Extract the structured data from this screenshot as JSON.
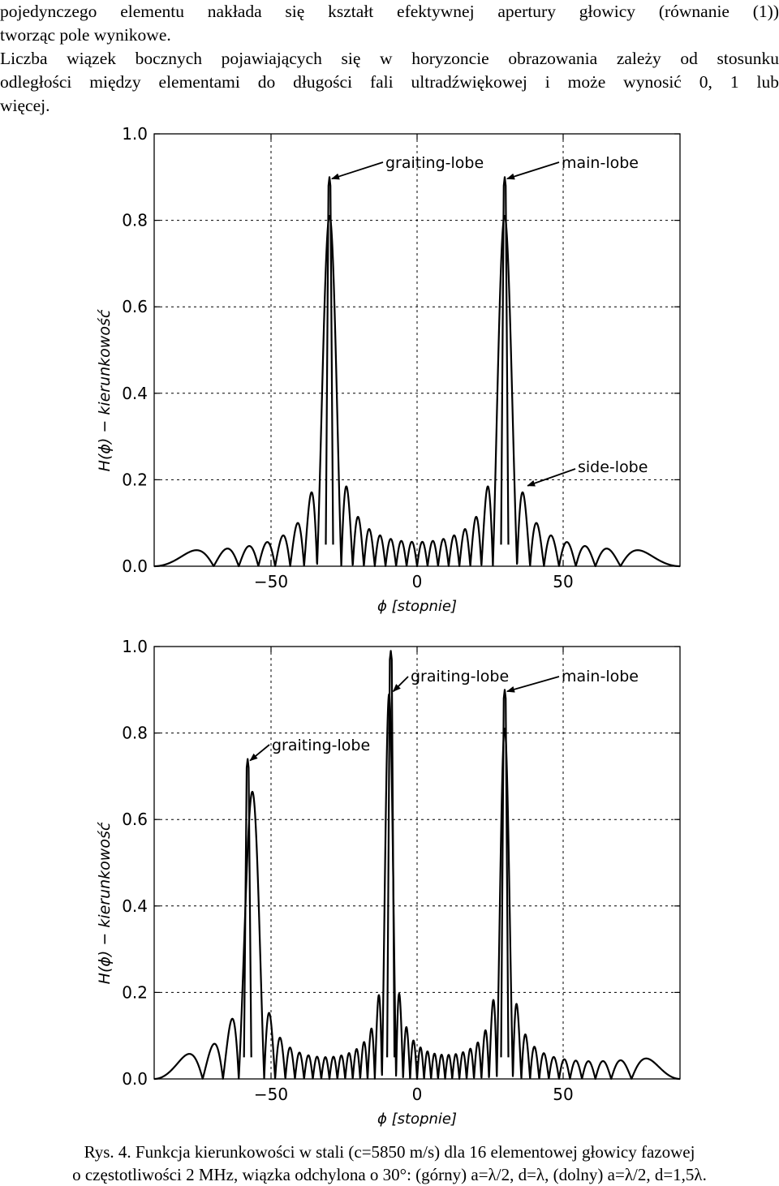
{
  "text": {
    "para1_line1": "pojedynczego elementu nakłada się kształt efektywnej apertury głowicy (równanie (1))",
    "para1_line2": "tworząc pole wynikowe.",
    "para2_line1": "Liczba wiązek bocznych pojawiających się w horyzoncie obrazowania zależy od stosunku",
    "para2_line2": "odległości między elementami do długości fali ultradźwiękowej i może wynosić 0, 1 lub",
    "para2_line3": "więcej."
  },
  "caption": {
    "line1": "Rys. 4. Funkcja kierunkowości w stali (c=5850 m/s) dla 16 elementowej głowicy fazowej",
    "line2": "o częstotliwości 2 MHz, wiązka odchylona o 30°: (górny) a=λ/2, d=λ, (dolny) a=λ/2, d=1,5λ."
  },
  "chart_data": [
    {
      "type": "line",
      "xlabel": "ϕ [stopnie]",
      "ylabel": "H(ϕ) − kierunkowość",
      "xlim": [
        -90,
        90
      ],
      "ylim": [
        0.0,
        1.0
      ],
      "xticks": [
        -50,
        0,
        50
      ],
      "xtick_labels": [
        "−50",
        "0",
        "50"
      ],
      "yticks": [
        0.0,
        0.2,
        0.4,
        0.6,
        0.8,
        1.0
      ],
      "ytick_labels": [
        "0.0",
        "0.2",
        "0.4",
        "0.6",
        "0.8",
        "1.0"
      ],
      "grid": true,
      "params": {
        "elements": 16,
        "d_over_lambda": 1.0,
        "a_over_lambda": 0.5,
        "steer_deg": 30
      },
      "peaks": [
        {
          "x": -30,
          "y": 0.9
        },
        {
          "x": 30,
          "y": 0.9
        }
      ],
      "annotations": [
        {
          "text": "graiting-lobe",
          "target_x": -30,
          "target_y": 0.9
        },
        {
          "text": "main-lobe",
          "target_x": 30,
          "target_y": 0.9
        },
        {
          "text": "side-lobe",
          "target_x": 37,
          "target_y": 0.19
        }
      ]
    },
    {
      "type": "line",
      "xlabel": "ϕ [stopnie]",
      "ylabel": "H(ϕ) − kierunkowość",
      "xlim": [
        -90,
        90
      ],
      "ylim": [
        0.0,
        1.0
      ],
      "xticks": [
        -50,
        0,
        50
      ],
      "xtick_labels": [
        "−50",
        "0",
        "50"
      ],
      "yticks": [
        0.0,
        0.2,
        0.4,
        0.6,
        0.8,
        1.0
      ],
      "ytick_labels": [
        "0.0",
        "0.2",
        "0.4",
        "0.6",
        "0.8",
        "1.0"
      ],
      "grid": true,
      "params": {
        "elements": 16,
        "d_over_lambda": 1.5,
        "a_over_lambda": 0.5,
        "steer_deg": 30
      },
      "peaks": [
        {
          "x": -58,
          "y": 0.74
        },
        {
          "x": -9,
          "y": 0.99
        },
        {
          "x": 30,
          "y": 0.9
        }
      ],
      "annotations": [
        {
          "text": "graiting-lobe",
          "target_x": -58,
          "target_y": 0.74
        },
        {
          "text": "graiting-lobe",
          "target_x": -9,
          "target_y": 0.9
        },
        {
          "text": "main-lobe",
          "target_x": 30,
          "target_y": 0.9
        }
      ]
    }
  ]
}
